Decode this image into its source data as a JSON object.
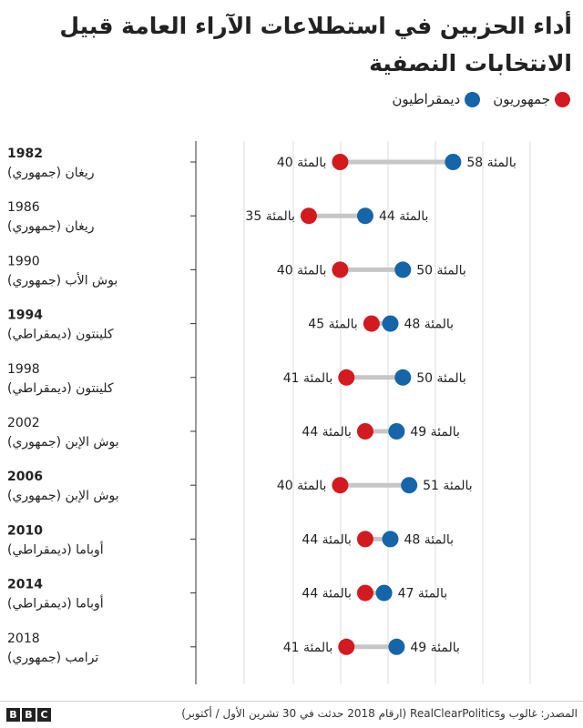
{
  "title": "أداء الحزبين في استطلاعات الآراء العامة قبيل الانتخابات النصفية",
  "legend": {
    "republican": "جمهوريون",
    "democrat": "ديمقراطيون"
  },
  "colors": {
    "republican": "#d21a20",
    "democrat": "#1565a8",
    "connector": "#c6c6c6",
    "gridline": "#dddddd"
  },
  "chart_data": {
    "type": "dot-plot",
    "unit_suffix": "بالمئة",
    "xlim": [
      17,
      70
    ],
    "grid": true,
    "legend_position": "top-right",
    "rows": [
      {
        "year": "1982",
        "president": "ريغان (جمهوري)",
        "year_bold": true,
        "republican": 40,
        "democrat": 58
      },
      {
        "year": "1986",
        "president": "ريغان (جمهوري)",
        "year_bold": false,
        "republican": 35,
        "democrat": 44
      },
      {
        "year": "1990",
        "president": "بوش الأب (جمهوري)",
        "year_bold": false,
        "republican": 40,
        "democrat": 50
      },
      {
        "year": "1994",
        "president": "كلينتون (ديمقراطي)",
        "year_bold": true,
        "republican": 45,
        "democrat": 48
      },
      {
        "year": "1998",
        "president": "كلينتون (ديمقراطي)",
        "year_bold": false,
        "republican": 41,
        "democrat": 50
      },
      {
        "year": "2002",
        "president": "بوش الإبن (جمهوري)",
        "year_bold": false,
        "republican": 44,
        "democrat": 49
      },
      {
        "year": "2006",
        "president": "بوش الإبن (جمهوري)",
        "year_bold": true,
        "republican": 40,
        "democrat": 51
      },
      {
        "year": "2010",
        "president": "أوباما (ديمقراطي)",
        "year_bold": true,
        "republican": 44,
        "democrat": 48
      },
      {
        "year": "2014",
        "president": "أوباما (ديمقراطي)",
        "year_bold": true,
        "republican": 44,
        "democrat": 47
      },
      {
        "year": "2018",
        "president": "ترامب (جمهوري)",
        "year_bold": false,
        "republican": 41,
        "democrat": 49
      }
    ]
  },
  "footer": {
    "logo_letters": [
      "B",
      "B",
      "C"
    ],
    "source": "المصدر: غالوب وRealClearPolitics (ارقام 2018 حدثت في 30 تشرين الأول / أكتوبر)"
  }
}
